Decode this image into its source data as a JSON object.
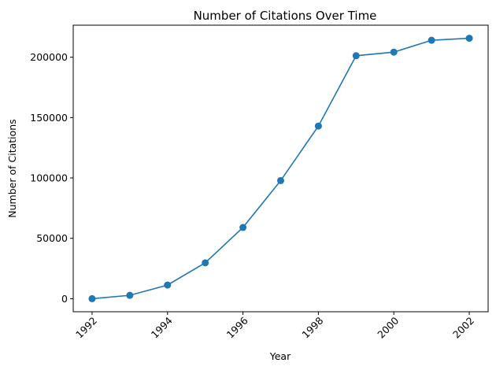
{
  "chart_data": {
    "type": "line",
    "title": "Number of Citations Over Time",
    "xlabel": "Year",
    "ylabel": "Number of Citations",
    "x": [
      1992,
      1993,
      1994,
      1995,
      1996,
      1997,
      1998,
      1999,
      2000,
      2001,
      2002
    ],
    "series": [
      {
        "values": [
          0,
          2800,
          11300,
          29700,
          59000,
          97800,
          143000,
          201200,
          204200,
          214000,
          215700
        ],
        "color": "#1f77b4",
        "marker": "circle"
      }
    ],
    "xlim": [
      1991.5,
      2002.5
    ],
    "ylim": [
      -10800,
      226500
    ],
    "x_ticks": [
      1992,
      1994,
      1996,
      1998,
      2000,
      2002
    ],
    "x_tick_labels": [
      "1992",
      "1994",
      "1996",
      "1998",
      "2000",
      "2002"
    ],
    "y_ticks": [
      0,
      50000,
      100000,
      150000,
      200000
    ],
    "y_tick_labels": [
      "0",
      "50000",
      "100000",
      "150000",
      "200000"
    ],
    "x_tick_rotation": 45,
    "grid": false,
    "legend": false
  }
}
